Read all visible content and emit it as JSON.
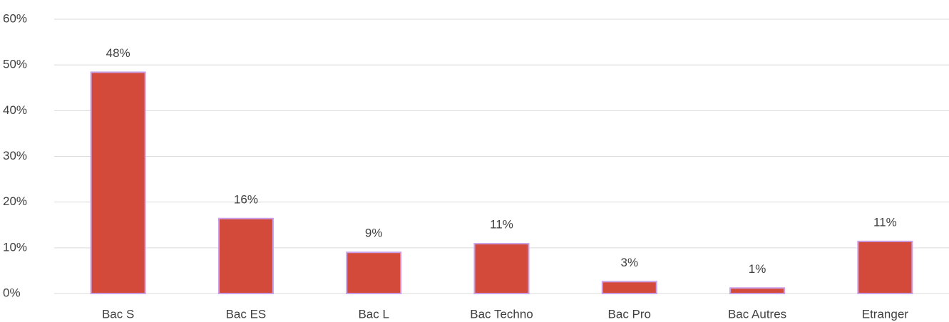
{
  "chart_data": {
    "type": "bar",
    "categories": [
      "Bac S",
      "Bac ES",
      "Bac L",
      "Bac Techno",
      "Bac Pro",
      "Bac Autres",
      "Etranger"
    ],
    "values": [
      48.4,
      16.4,
      9.0,
      10.9,
      2.6,
      1.2,
      11.4
    ],
    "value_labels": [
      "48%",
      "16%",
      "9%",
      "11%",
      "3%",
      "1%",
      "11%"
    ],
    "color": "#d44a3a",
    "ylim": [
      0,
      60
    ],
    "yticks": [
      {
        "value": 0,
        "label": "0%"
      },
      {
        "value": 10,
        "label": "10%"
      },
      {
        "value": 20,
        "label": "20%"
      },
      {
        "value": 30,
        "label": "30%"
      },
      {
        "value": 40,
        "label": "40%"
      },
      {
        "value": 50,
        "label": "50%"
      },
      {
        "value": 60,
        "label": "60%"
      }
    ],
    "grid": true
  }
}
